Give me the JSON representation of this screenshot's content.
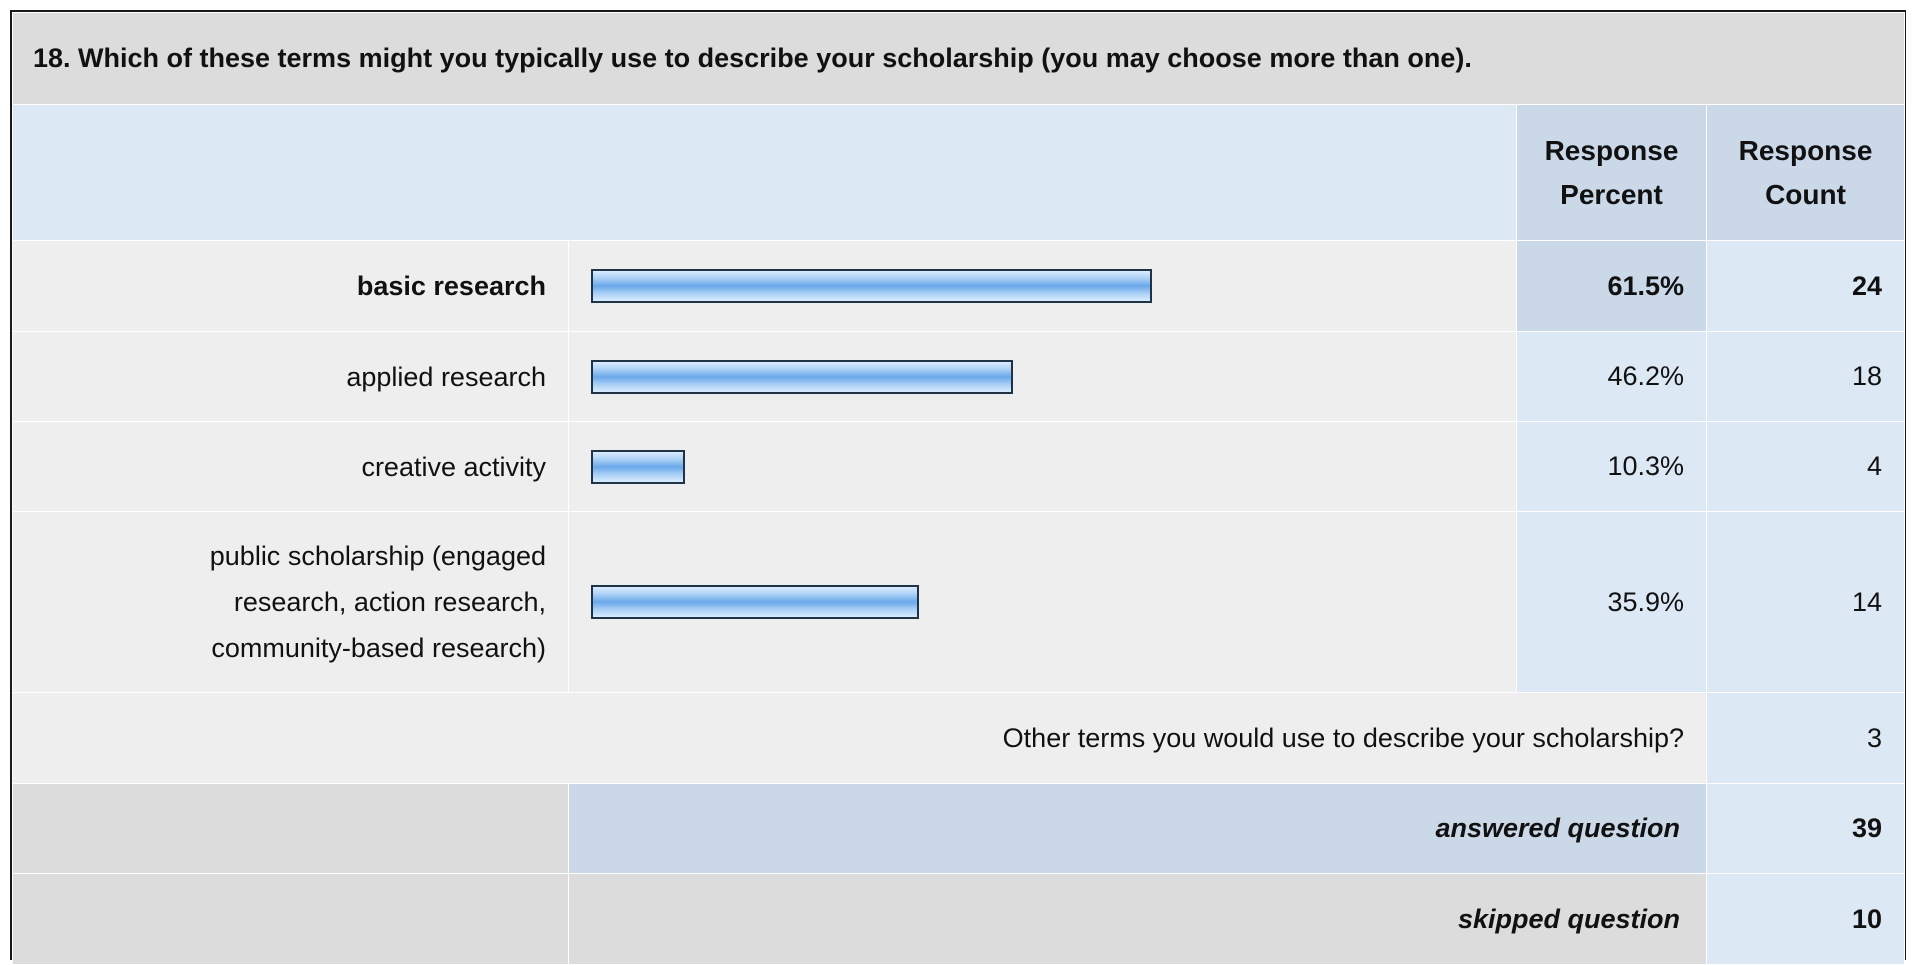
{
  "question": "18. Which of these terms might you typically use to describe your scholarship (you may choose more than one).",
  "headers": {
    "response_percent_line1": "Response",
    "response_percent_line2": "Percent",
    "response_count_line1": "Response",
    "response_count_line2": "Count"
  },
  "rows": [
    {
      "label": "basic research",
      "percent": "61.5%",
      "count": "24",
      "bold": true
    },
    {
      "label": "applied research",
      "percent": "46.2%",
      "count": "18",
      "bold": false
    },
    {
      "label": "creative activity",
      "percent": "10.3%",
      "count": "4",
      "bold": false
    },
    {
      "label_lines": [
        "public scholarship (engaged",
        "research, action research,",
        "community-based research)"
      ],
      "percent": "35.9%",
      "count": "14",
      "bold": false
    }
  ],
  "other": {
    "label": "Other terms you would use to describe your scholarship?",
    "count": "3"
  },
  "answered": {
    "label": "answered question",
    "count": "39"
  },
  "skipped": {
    "label": "skipped question",
    "count": "10"
  },
  "colors": {
    "bar_fill": "#6aa8ea",
    "bar_border": "#1f3347",
    "header_blue": "#cad8e8",
    "light_blue": "#dde8f5",
    "grey": "#dcdcdc"
  },
  "chart_data": {
    "type": "bar",
    "orientation": "horizontal",
    "categories": [
      "basic research",
      "applied research",
      "creative activity",
      "public scholarship (engaged research, action research, community-based research)"
    ],
    "values": [
      61.5,
      46.2,
      10.3,
      35.9
    ],
    "counts": [
      24,
      18,
      4,
      14
    ],
    "xlim": [
      0,
      100
    ],
    "unit": "%"
  }
}
